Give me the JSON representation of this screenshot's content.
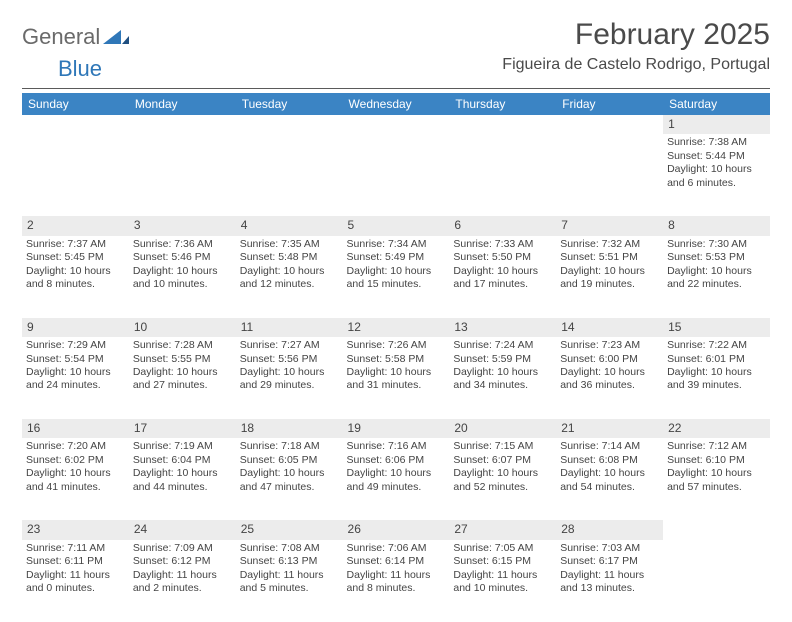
{
  "logo": {
    "part1": "General",
    "part2": "Blue"
  },
  "title": "February 2025",
  "location": "Figueira de Castelo Rodrigo, Portugal",
  "header_bg": "#3b84c4",
  "header_fg": "#ffffff",
  "daynum_bg": "#ececec",
  "days_of_week": [
    "Sunday",
    "Monday",
    "Tuesday",
    "Wednesday",
    "Thursday",
    "Friday",
    "Saturday"
  ],
  "weeks": [
    {
      "nums": [
        "",
        "",
        "",
        "",
        "",
        "",
        "1"
      ],
      "cells": [
        "",
        "",
        "",
        "",
        "",
        "",
        "Sunrise: 7:38 AM\nSunset: 5:44 PM\nDaylight: 10 hours and 6 minutes."
      ]
    },
    {
      "nums": [
        "2",
        "3",
        "4",
        "5",
        "6",
        "7",
        "8"
      ],
      "cells": [
        "Sunrise: 7:37 AM\nSunset: 5:45 PM\nDaylight: 10 hours and 8 minutes.",
        "Sunrise: 7:36 AM\nSunset: 5:46 PM\nDaylight: 10 hours and 10 minutes.",
        "Sunrise: 7:35 AM\nSunset: 5:48 PM\nDaylight: 10 hours and 12 minutes.",
        "Sunrise: 7:34 AM\nSunset: 5:49 PM\nDaylight: 10 hours and 15 minutes.",
        "Sunrise: 7:33 AM\nSunset: 5:50 PM\nDaylight: 10 hours and 17 minutes.",
        "Sunrise: 7:32 AM\nSunset: 5:51 PM\nDaylight: 10 hours and 19 minutes.",
        "Sunrise: 7:30 AM\nSunset: 5:53 PM\nDaylight: 10 hours and 22 minutes."
      ]
    },
    {
      "nums": [
        "9",
        "10",
        "11",
        "12",
        "13",
        "14",
        "15"
      ],
      "cells": [
        "Sunrise: 7:29 AM\nSunset: 5:54 PM\nDaylight: 10 hours and 24 minutes.",
        "Sunrise: 7:28 AM\nSunset: 5:55 PM\nDaylight: 10 hours and 27 minutes.",
        "Sunrise: 7:27 AM\nSunset: 5:56 PM\nDaylight: 10 hours and 29 minutes.",
        "Sunrise: 7:26 AM\nSunset: 5:58 PM\nDaylight: 10 hours and 31 minutes.",
        "Sunrise: 7:24 AM\nSunset: 5:59 PM\nDaylight: 10 hours and 34 minutes.",
        "Sunrise: 7:23 AM\nSunset: 6:00 PM\nDaylight: 10 hours and 36 minutes.",
        "Sunrise: 7:22 AM\nSunset: 6:01 PM\nDaylight: 10 hours and 39 minutes."
      ]
    },
    {
      "nums": [
        "16",
        "17",
        "18",
        "19",
        "20",
        "21",
        "22"
      ],
      "cells": [
        "Sunrise: 7:20 AM\nSunset: 6:02 PM\nDaylight: 10 hours and 41 minutes.",
        "Sunrise: 7:19 AM\nSunset: 6:04 PM\nDaylight: 10 hours and 44 minutes.",
        "Sunrise: 7:18 AM\nSunset: 6:05 PM\nDaylight: 10 hours and 47 minutes.",
        "Sunrise: 7:16 AM\nSunset: 6:06 PM\nDaylight: 10 hours and 49 minutes.",
        "Sunrise: 7:15 AM\nSunset: 6:07 PM\nDaylight: 10 hours and 52 minutes.",
        "Sunrise: 7:14 AM\nSunset: 6:08 PM\nDaylight: 10 hours and 54 minutes.",
        "Sunrise: 7:12 AM\nSunset: 6:10 PM\nDaylight: 10 hours and 57 minutes."
      ]
    },
    {
      "nums": [
        "23",
        "24",
        "25",
        "26",
        "27",
        "28",
        ""
      ],
      "cells": [
        "Sunrise: 7:11 AM\nSunset: 6:11 PM\nDaylight: 11 hours and 0 minutes.",
        "Sunrise: 7:09 AM\nSunset: 6:12 PM\nDaylight: 11 hours and 2 minutes.",
        "Sunrise: 7:08 AM\nSunset: 6:13 PM\nDaylight: 11 hours and 5 minutes.",
        "Sunrise: 7:06 AM\nSunset: 6:14 PM\nDaylight: 11 hours and 8 minutes.",
        "Sunrise: 7:05 AM\nSunset: 6:15 PM\nDaylight: 11 hours and 10 minutes.",
        "Sunrise: 7:03 AM\nSunset: 6:17 PM\nDaylight: 11 hours and 13 minutes.",
        ""
      ]
    }
  ]
}
